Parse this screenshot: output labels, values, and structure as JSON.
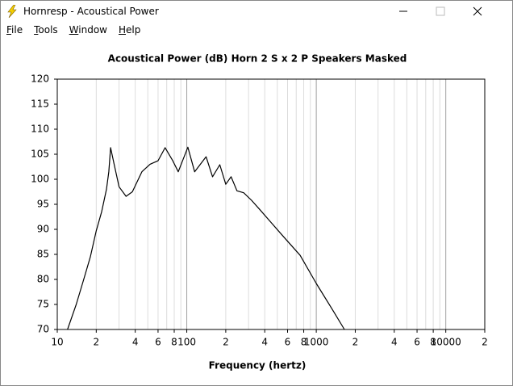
{
  "window": {
    "title": "Hornresp - Acoustical Power"
  },
  "menu": [
    "File",
    "Tools",
    "Window",
    "Help"
  ],
  "chart_data": {
    "type": "line",
    "title": "Acoustical Power (dB)   Horn   2 S x 2 P Speakers   Masked",
    "x_label": "Frequency (hertz)",
    "x": [
      12,
      14,
      16,
      18,
      20,
      22,
      24,
      25,
      25.8,
      27.5,
      30,
      34,
      38,
      45,
      52,
      60,
      68,
      78,
      86,
      102,
      115,
      141,
      158,
      180,
      200,
      220,
      244,
      275,
      316,
      365,
      450,
      560,
      750,
      1000,
      1330,
      1650
    ],
    "values": [
      70,
      75,
      80,
      84.5,
      89.7,
      93.5,
      98,
      101.5,
      106.3,
      103,
      98.5,
      96.6,
      97.5,
      101.5,
      103,
      103.7,
      106.3,
      103.7,
      101.5,
      106.4,
      101.5,
      104.5,
      100.5,
      102.9,
      99,
      100.5,
      97.7,
      97.3,
      95.8,
      94,
      91.3,
      88.5,
      84.8,
      79.2,
      74,
      70
    ],
    "color": "#000000",
    "xscale": "log",
    "xlim": [
      10,
      20000
    ],
    "xticks": [
      10,
      {
        "value": 20,
        "label": "2"
      },
      {
        "value": 40,
        "label": "4"
      },
      {
        "value": 60,
        "label": "6"
      },
      {
        "value": 80,
        "label": "8"
      },
      100,
      {
        "value": 200,
        "label": "2"
      },
      {
        "value": 400,
        "label": "4"
      },
      {
        "value": 600,
        "label": "6"
      },
      {
        "value": 800,
        "label": "8"
      },
      1000,
      {
        "value": 2000,
        "label": "2"
      },
      {
        "value": 4000,
        "label": "4"
      },
      {
        "value": 6000,
        "label": "6"
      },
      {
        "value": 8000,
        "label": "8"
      },
      10000,
      {
        "value": 20000,
        "label": "2"
      }
    ],
    "ylim": [
      70,
      120
    ],
    "yticks": [
      70,
      75,
      80,
      85,
      90,
      95,
      100,
      105,
      110,
      115,
      120
    ],
    "xgrid": true
  }
}
